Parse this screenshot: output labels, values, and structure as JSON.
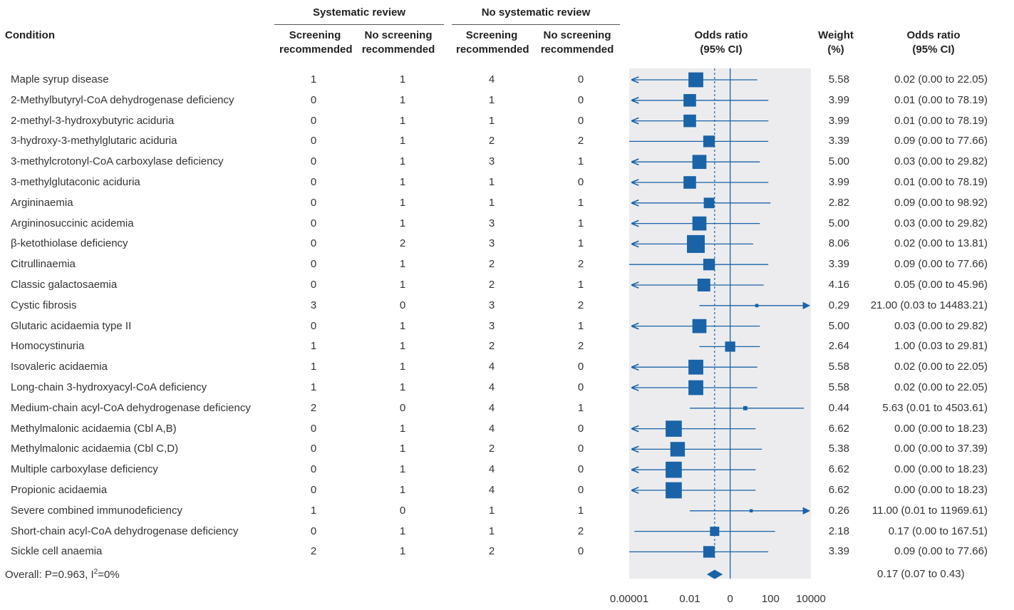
{
  "headers": {
    "group1": "Systematic review",
    "group2": "No systematic review",
    "condition": "Condition",
    "screening": [
      "Screening",
      "recommended"
    ],
    "no_screening": [
      "No screening",
      "recommended"
    ],
    "odds_ratio_plot": [
      "Odds ratio",
      "(95% CI)"
    ],
    "weight": [
      "Weight",
      "(%)"
    ],
    "odds_ratio_text": [
      "Odds ratio",
      "(95% CI)"
    ]
  },
  "overall": {
    "label_main": "Overall: P=0.963, I",
    "label_sup": "2",
    "label_end": "=0%",
    "ci_text": "0.17 (0.07 to 0.43)"
  },
  "colors": {
    "marker": "#1a63a8",
    "plot_bg": "#ececee",
    "axis": "#1a63a8"
  },
  "chart_data": {
    "type": "forest",
    "xscale": "log",
    "xlim": [
      1e-05,
      10000
    ],
    "reference_line": 1,
    "overall_line": 0.17,
    "xticks": [
      {
        "v": 1e-05,
        "label": "0.00001"
      },
      {
        "v": 0.01,
        "label": "0.01"
      },
      {
        "v": 1,
        "label": "0"
      },
      {
        "v": 100,
        "label": "100"
      },
      {
        "v": 10000,
        "label": "10000"
      }
    ],
    "overall": {
      "or": 0.17,
      "lo": 0.07,
      "hi": 0.43
    },
    "rows": [
      {
        "condition": "Maple syrup disease",
        "sr_s": "1",
        "sr_n": "1",
        "nsr_s": "4",
        "nsr_n": "0",
        "weight": "5.58",
        "ci_text": "0.02 (0.00 to 22.05)",
        "or": 0.02,
        "lo": 1.8e-05,
        "hi": 22.05,
        "lo_arrow": true,
        "hi_arrow": false
      },
      {
        "condition": "2-Methylbutyryl-CoA dehydrogenase deficiency",
        "sr_s": "0",
        "sr_n": "1",
        "nsr_s": "1",
        "nsr_n": "0",
        "weight": "3.99",
        "ci_text": "0.01 (0.00 to 78.19)",
        "or": 0.01,
        "lo": 1.8e-05,
        "hi": 78.19,
        "lo_arrow": true,
        "hi_arrow": false
      },
      {
        "condition": "2-methyl-3-hydroxybutyric aciduria",
        "sr_s": "0",
        "sr_n": "1",
        "nsr_s": "1",
        "nsr_n": "0",
        "weight": "3.99",
        "ci_text": "0.01 (0.00 to 78.19)",
        "or": 0.01,
        "lo": 1.8e-05,
        "hi": 78.19,
        "lo_arrow": true,
        "hi_arrow": false
      },
      {
        "condition": "3-hydroxy-3-methylglutaric aciduria",
        "sr_s": "0",
        "sr_n": "1",
        "nsr_s": "2",
        "nsr_n": "2",
        "weight": "3.39",
        "ci_text": "0.09 (0.00 to 77.66)",
        "or": 0.09,
        "lo": 1e-05,
        "hi": 77.66,
        "lo_arrow": false,
        "hi_arrow": false
      },
      {
        "condition": "3-methylcrotonyl-CoA carboxylase deficiency",
        "sr_s": "0",
        "sr_n": "1",
        "nsr_s": "3",
        "nsr_n": "1",
        "weight": "5.00",
        "ci_text": "0.03 (0.00 to 29.82)",
        "or": 0.03,
        "lo": 1.8e-05,
        "hi": 29.82,
        "lo_arrow": true,
        "hi_arrow": false
      },
      {
        "condition": "3-methylglutaconic aciduria",
        "sr_s": "0",
        "sr_n": "1",
        "nsr_s": "1",
        "nsr_n": "0",
        "weight": "3.99",
        "ci_text": "0.01 (0.00 to 78.19)",
        "or": 0.01,
        "lo": 1.8e-05,
        "hi": 78.19,
        "lo_arrow": true,
        "hi_arrow": false
      },
      {
        "condition": "Argininaemia",
        "sr_s": "0",
        "sr_n": "1",
        "nsr_s": "1",
        "nsr_n": "1",
        "weight": "2.82",
        "ci_text": "0.09 (0.00 to 98.92)",
        "or": 0.09,
        "lo": 1.8e-05,
        "hi": 98.92,
        "lo_arrow": true,
        "hi_arrow": false
      },
      {
        "condition": "Argininosuccinic acidemia",
        "sr_s": "0",
        "sr_n": "1",
        "nsr_s": "3",
        "nsr_n": "1",
        "weight": "5.00",
        "ci_text": "0.03 (0.00 to 29.82)",
        "or": 0.03,
        "lo": 1.8e-05,
        "hi": 29.82,
        "lo_arrow": true,
        "hi_arrow": false
      },
      {
        "condition": "β-ketothiolase deficiency",
        "sr_s": "0",
        "sr_n": "2",
        "nsr_s": "3",
        "nsr_n": "1",
        "weight": "8.06",
        "ci_text": "0.02 (0.00 to 13.81)",
        "or": 0.02,
        "lo": 1.8e-05,
        "hi": 13.81,
        "lo_arrow": true,
        "hi_arrow": false
      },
      {
        "condition": "Citrullinaemia",
        "sr_s": "0",
        "sr_n": "1",
        "nsr_s": "2",
        "nsr_n": "2",
        "weight": "3.39",
        "ci_text": "0.09 (0.00 to 77.66)",
        "or": 0.09,
        "lo": 1e-05,
        "hi": 77.66,
        "lo_arrow": false,
        "hi_arrow": false
      },
      {
        "condition": "Classic galactosaemia",
        "sr_s": "0",
        "sr_n": "1",
        "nsr_s": "2",
        "nsr_n": "1",
        "weight": "4.16",
        "ci_text": "0.05 (0.00 to 45.96)",
        "or": 0.05,
        "lo": 1.8e-05,
        "hi": 45.96,
        "lo_arrow": true,
        "hi_arrow": false
      },
      {
        "condition": "Cystic fibrosis",
        "sr_s": "3",
        "sr_n": "0",
        "nsr_s": "3",
        "nsr_n": "2",
        "weight": "0.29",
        "ci_text": "21.00 (0.03 to 14483.21)",
        "or": 21.0,
        "lo": 0.03,
        "hi": 10000,
        "lo_arrow": false,
        "hi_arrow": true
      },
      {
        "condition": "Glutaric acidaemia type II",
        "sr_s": "0",
        "sr_n": "1",
        "nsr_s": "3",
        "nsr_n": "1",
        "weight": "5.00",
        "ci_text": "0.03 (0.00 to 29.82)",
        "or": 0.03,
        "lo": 1.8e-05,
        "hi": 29.82,
        "lo_arrow": true,
        "hi_arrow": false
      },
      {
        "condition": "Homocystinuria",
        "sr_s": "1",
        "sr_n": "1",
        "nsr_s": "2",
        "nsr_n": "2",
        "weight": "2.64",
        "ci_text": "1.00 (0.03 to 29.81)",
        "or": 1.0,
        "lo": 0.03,
        "hi": 29.81,
        "lo_arrow": false,
        "hi_arrow": false
      },
      {
        "condition": "Isovaleric acidaemia",
        "sr_s": "1",
        "sr_n": "1",
        "nsr_s": "4",
        "nsr_n": "0",
        "weight": "5.58",
        "ci_text": "0.02 (0.00 to 22.05)",
        "or": 0.02,
        "lo": 1.8e-05,
        "hi": 22.05,
        "lo_arrow": true,
        "hi_arrow": false
      },
      {
        "condition": "Long-chain 3-hydroxyacyl-CoA deficiency",
        "sr_s": "1",
        "sr_n": "1",
        "nsr_s": "4",
        "nsr_n": "0",
        "weight": "5.58",
        "ci_text": "0.02 (0.00 to 22.05)",
        "or": 0.02,
        "lo": 1.8e-05,
        "hi": 22.05,
        "lo_arrow": true,
        "hi_arrow": false
      },
      {
        "condition": "Medium-chain acyl-CoA dehydrogenase deficiency",
        "sr_s": "2",
        "sr_n": "0",
        "nsr_s": "4",
        "nsr_n": "1",
        "weight": "0.44",
        "ci_text": "5.63 (0.01 to 4503.61)",
        "or": 5.63,
        "lo": 0.01,
        "hi": 4503.61,
        "lo_arrow": false,
        "hi_arrow": false
      },
      {
        "condition": "Methylmalonic acidaemia (Cbl A,B)",
        "sr_s": "0",
        "sr_n": "1",
        "nsr_s": "4",
        "nsr_n": "0",
        "weight": "6.62",
        "ci_text": "0.00 (0.00 to 18.23)",
        "or": 0.0016,
        "lo": 1.8e-05,
        "hi": 18.23,
        "lo_arrow": true,
        "hi_arrow": false
      },
      {
        "condition": "Methylmalonic acidaemia (Cbl C,D)",
        "sr_s": "0",
        "sr_n": "1",
        "nsr_s": "2",
        "nsr_n": "0",
        "weight": "5.38",
        "ci_text": "0.00 (0.00 to 37.39)",
        "or": 0.0025,
        "lo": 1.8e-05,
        "hi": 37.39,
        "lo_arrow": true,
        "hi_arrow": false
      },
      {
        "condition": "Multiple carboxylase deficiency",
        "sr_s": "0",
        "sr_n": "1",
        "nsr_s": "4",
        "nsr_n": "0",
        "weight": "6.62",
        "ci_text": "0.00 (0.00 to 18.23)",
        "or": 0.0016,
        "lo": 1.8e-05,
        "hi": 18.23,
        "lo_arrow": true,
        "hi_arrow": false
      },
      {
        "condition": "Propionic acidaemia",
        "sr_s": "0",
        "sr_n": "1",
        "nsr_s": "4",
        "nsr_n": "0",
        "weight": "6.62",
        "ci_text": "0.00 (0.00 to 18.23)",
        "or": 0.0016,
        "lo": 1.8e-05,
        "hi": 18.23,
        "lo_arrow": true,
        "hi_arrow": false
      },
      {
        "condition": "Severe combined immunodeficiency",
        "sr_s": "1",
        "sr_n": "0",
        "nsr_s": "1",
        "nsr_n": "1",
        "weight": "0.26",
        "ci_text": "11.00 (0.01 to 11969.61)",
        "or": 11.0,
        "lo": 0.01,
        "hi": 10000,
        "lo_arrow": false,
        "hi_arrow": true
      },
      {
        "condition": "Short-chain acyl-CoA dehydrogenase deficiency",
        "sr_s": "0",
        "sr_n": "1",
        "nsr_s": "1",
        "nsr_n": "2",
        "weight": "2.18",
        "ci_text": "0.17 (0.00 to 167.51)",
        "or": 0.17,
        "lo": 1.8e-05,
        "hi": 167.51,
        "lo_arrow": false,
        "hi_arrow": false
      },
      {
        "condition": "Sickle cell anaemia",
        "sr_s": "2",
        "sr_n": "1",
        "nsr_s": "2",
        "nsr_n": "0",
        "weight": "3.39",
        "ci_text": "0.09 (0.00 to 77.66)",
        "or": 0.09,
        "lo": 1e-05,
        "hi": 77.66,
        "lo_arrow": false,
        "hi_arrow": false
      }
    ]
  }
}
